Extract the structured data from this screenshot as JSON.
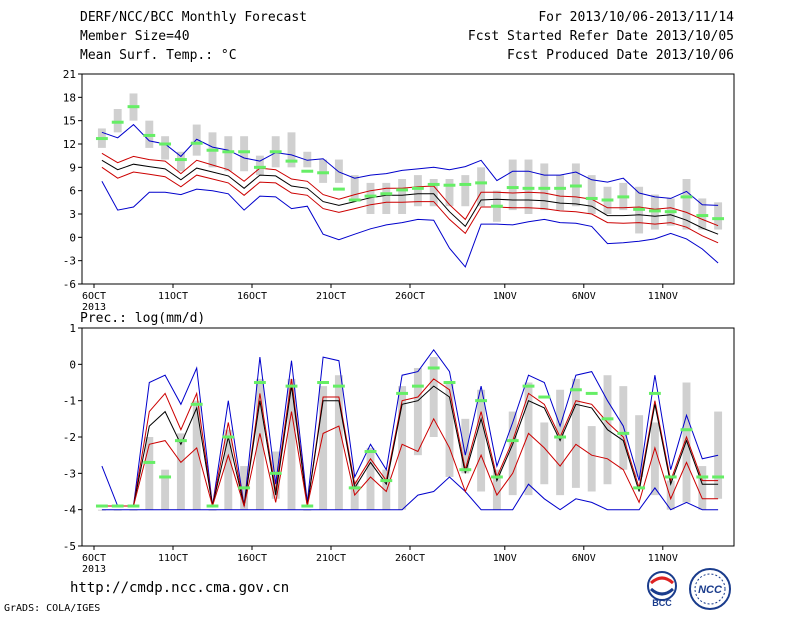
{
  "header": {
    "title": "DERF/NCC/BCC Monthly Forecast",
    "member_size": "Member Size=40",
    "variable": "Mean Surf. Temp.: °C",
    "period": "For 2013/10/06-2013/11/14",
    "fcst_started": "Fcst Started Refer Date 2013/10/05",
    "fcst_produced": "Fcst Produced Date 2013/10/06"
  },
  "footer": {
    "url": "http://cmdp.ncc.cma.gov.cn",
    "credit": "GrADS: COLA/IGES",
    "logo_left_text": "BCC",
    "logo_right_text": "NCC"
  },
  "colors": {
    "box": "#d0d0d0",
    "median": "#66ee66",
    "envelope": "#0000cc",
    "spread": "#cc0000",
    "mean": "#000000"
  },
  "chart_data": [
    {
      "type": "line",
      "title": "",
      "ylabel": "Mean Surf. Temp.: °C",
      "ylim": [
        -6,
        21
      ],
      "yticks": [
        -6,
        -3,
        0,
        3,
        6,
        9,
        12,
        15,
        18,
        21
      ],
      "xticks": [
        {
          "day": 0,
          "label": "6OCT",
          "year": "2013"
        },
        {
          "day": 5,
          "label": "11OCT"
        },
        {
          "day": 10,
          "label": "16OCT"
        },
        {
          "day": 15,
          "label": "21OCT"
        },
        {
          "day": 20,
          "label": "26OCT"
        },
        {
          "day": 26,
          "label": "1NOV"
        },
        {
          "day": 31,
          "label": "6NOV"
        },
        {
          "day": 36,
          "label": "11NOV"
        }
      ],
      "days": 40,
      "boxes": [
        [
          11.5,
          14
        ],
        [
          13.5,
          16.5
        ],
        [
          15,
          18.5
        ],
        [
          11.5,
          15
        ],
        [
          10,
          13
        ],
        [
          8.5,
          11
        ],
        [
          10.5,
          14.5
        ],
        [
          9,
          13.5
        ],
        [
          8.5,
          13
        ],
        [
          8.5,
          13
        ],
        [
          8,
          10.5
        ],
        [
          9,
          13
        ],
        [
          9,
          13.5
        ],
        [
          9,
          11
        ],
        [
          7,
          10
        ],
        [
          7,
          10
        ],
        [
          5,
          8
        ],
        [
          3,
          7
        ],
        [
          3,
          7
        ],
        [
          3,
          7.5
        ],
        [
          4,
          8
        ],
        [
          4,
          7.5
        ],
        [
          4,
          7.5
        ],
        [
          4,
          8
        ],
        [
          4,
          9
        ],
        [
          2,
          6
        ],
        [
          3.5,
          10
        ],
        [
          3,
          10
        ],
        [
          3.5,
          9.5
        ],
        [
          3.5,
          8
        ],
        [
          4,
          9.5
        ],
        [
          3,
          8
        ],
        [
          3,
          6.5
        ],
        [
          3.5,
          7
        ],
        [
          0.5,
          6.5
        ],
        [
          1,
          5.5
        ],
        [
          1.5,
          5
        ],
        [
          1,
          7.5
        ],
        [
          1,
          5
        ],
        [
          1,
          4.5
        ]
      ],
      "series": [
        {
          "name": "",
          "role": "median",
          "values": [
            12.7,
            14.8,
            16.8,
            13.1,
            12,
            10,
            12.1,
            11.2,
            11,
            11,
            9,
            11,
            9.8,
            8.5,
            8.3,
            6.2,
            4.8,
            5.3,
            5.6,
            6.1,
            6.3,
            6.8,
            6.7,
            6.8,
            7,
            4,
            6.4,
            6.3,
            6.3,
            6.3,
            6.6,
            5,
            4.8,
            5.2,
            3.6,
            3.4,
            3.3,
            5.2,
            2.8,
            2.4
          ]
        },
        {
          "name": "",
          "role": "upper envelope",
          "values": [
            13.5,
            12.8,
            14.5,
            12.4,
            12,
            10.4,
            12.6,
            11.6,
            11.2,
            10.2,
            9.8,
            10.9,
            10.6,
            9.9,
            10.1,
            8.4,
            7.6,
            8,
            8.2,
            8.6,
            8.8,
            9,
            8.7,
            9.1,
            9.9,
            7.3,
            8.5,
            8.5,
            8,
            8,
            8.4,
            7.4,
            7.1,
            7.6,
            5.7,
            5.2,
            5,
            5.9,
            4.2,
            4.1
          ]
        },
        {
          "name": "",
          "role": "lower envelope",
          "values": [
            7.2,
            3.5,
            3.9,
            5.8,
            5.8,
            5.5,
            6.2,
            6,
            5.6,
            3.5,
            5.3,
            5.2,
            3.7,
            4,
            0.4,
            -0.3,
            0.4,
            1.1,
            1.6,
            1.9,
            2.3,
            2.2,
            -1.4,
            -3.8,
            1.7,
            1.7,
            1.6,
            2,
            2.3,
            1.9,
            1.8,
            1.4,
            -0.8,
            -0.7,
            -0.5,
            -0.2,
            0.5,
            -0.2,
            -1.5,
            -3.3
          ]
        },
        {
          "name": "",
          "role": "upper spread",
          "values": [
            10.8,
            9.6,
            10.4,
            10,
            9.8,
            8.2,
            9.9,
            9.3,
            8.7,
            7.2,
            8.9,
            8.7,
            7.5,
            7.2,
            5.5,
            4.9,
            5.5,
            6,
            6.3,
            6.3,
            6.5,
            6.6,
            4.2,
            2.3,
            5.8,
            5.8,
            5.7,
            5.8,
            5.7,
            5.3,
            5.2,
            4.9,
            3.8,
            3.8,
            3.9,
            3.6,
            3.8,
            3.2,
            2.3,
            1.5
          ]
        },
        {
          "name": "",
          "role": "mean",
          "values": [
            9.9,
            8.7,
            9.4,
            9.1,
            8.8,
            7.4,
            8.9,
            8.4,
            7.9,
            6.3,
            8,
            7.9,
            6.6,
            6.3,
            4.6,
            4.1,
            4.6,
            5.1,
            5.4,
            5.4,
            5.6,
            5.6,
            3.3,
            1.4,
            4.8,
            4.9,
            4.8,
            4.8,
            4.7,
            4.4,
            4.3,
            4,
            2.8,
            2.8,
            2.9,
            2.7,
            2.9,
            2.2,
            1.2,
            0.4
          ]
        },
        {
          "name": "",
          "role": "lower spread",
          "values": [
            9,
            7.6,
            8.4,
            8.1,
            7.8,
            6.5,
            8,
            7.5,
            7,
            5.4,
            7.1,
            7,
            5.7,
            5.4,
            3.7,
            3.2,
            3.7,
            4.2,
            4.5,
            4.5,
            4.6,
            4.6,
            2.3,
            0.5,
            3.9,
            3.9,
            3.8,
            3.8,
            3.7,
            3.4,
            3.3,
            3,
            1.9,
            1.8,
            1.9,
            1.7,
            1.9,
            1.3,
            0.2,
            -0.7
          ]
        }
      ]
    },
    {
      "type": "line",
      "title": "",
      "ylabel": "Prec.: log(mm/d)",
      "ylim": [
        -5,
        1
      ],
      "yticks": [
        -5,
        -4,
        -3,
        -2,
        -1,
        0,
        1
      ],
      "xticks": [
        {
          "day": 0,
          "label": "6OCT",
          "year": "2013"
        },
        {
          "day": 5,
          "label": "11OCT"
        },
        {
          "day": 10,
          "label": "16OCT"
        },
        {
          "day": 15,
          "label": "21OCT"
        },
        {
          "day": 20,
          "label": "26OCT"
        },
        {
          "day": 26,
          "label": "1NOV"
        },
        {
          "day": 31,
          "label": "6NOV"
        },
        {
          "day": 36,
          "label": "11NOV"
        }
      ],
      "days": 40,
      "boxes": [
        [
          -4,
          -4
        ],
        [
          -4,
          -4
        ],
        [
          -4,
          -4
        ],
        [
          -4,
          -2
        ],
        [
          -4,
          -2.9
        ],
        [
          -4,
          -1.9
        ],
        [
          -4,
          -1
        ],
        [
          -4,
          -4
        ],
        [
          -4,
          -1.8
        ],
        [
          -4,
          -2.8
        ],
        [
          -4,
          -0.4
        ],
        [
          -3.7,
          -2.4
        ],
        [
          -4,
          -0.4
        ],
        [
          -4,
          -4
        ],
        [
          -4,
          -0.6
        ],
        [
          -4,
          -0.3
        ],
        [
          -4,
          -3.2
        ],
        [
          -4,
          -2.3
        ],
        [
          -4,
          -2.9
        ],
        [
          -4,
          -0.6
        ],
        [
          -2.5,
          -0.1
        ],
        [
          -2,
          0.2
        ],
        [
          -3.1,
          -0.5
        ],
        [
          -3,
          -1.5
        ],
        [
          -3.5,
          -0.7
        ],
        [
          -4,
          -2.9
        ],
        [
          -3.6,
          -1.3
        ],
        [
          -3.6,
          -0.5
        ],
        [
          -3.3,
          -1.6
        ],
        [
          -3.6,
          -0.7
        ],
        [
          -3.4,
          -0.4
        ],
        [
          -3.5,
          -1.7
        ],
        [
          -3.3,
          -0.3
        ],
        [
          -2.9,
          -0.6
        ],
        [
          -3.1,
          -1.4
        ],
        [
          -3.6,
          -1.6
        ],
        [
          -4,
          -3.2
        ],
        [
          -3.8,
          -0.5
        ],
        [
          -4,
          -2.8
        ],
        [
          -3.7,
          -1.3
        ]
      ],
      "series": [
        {
          "name": "",
          "role": "median",
          "values": [
            -3.9,
            -3.9,
            -3.9,
            -2.7,
            -3.1,
            -2.1,
            -1.1,
            -3.9,
            -2,
            -3.4,
            -0.5,
            -3,
            -0.6,
            -3.9,
            -0.5,
            -0.6,
            -3.4,
            -2.4,
            -3.2,
            -0.8,
            -0.6,
            -0.1,
            -0.5,
            -2.9,
            -1,
            -3.1,
            -2.1,
            -0.6,
            -0.9,
            -2,
            -0.7,
            -0.8,
            -1.5,
            -1.9,
            -3.4,
            -0.8,
            -3.1,
            -1.8,
            -3.1,
            -3.1
          ]
        },
        {
          "name": "",
          "role": "upper envelope",
          "values": [
            -2.8,
            -3.9,
            -3.9,
            -0.5,
            -0.3,
            -1.1,
            -0.1,
            -3.9,
            -1,
            -3.9,
            0.2,
            -3.3,
            0.1,
            -3.8,
            0.2,
            0.1,
            -3.1,
            -2.2,
            -2.9,
            -0.3,
            -0.2,
            0.4,
            -0.2,
            -2.5,
            -0.6,
            -2.8,
            -1.6,
            -0.3,
            -0.5,
            -1.7,
            -0.3,
            -0.2,
            -1,
            -1.7,
            -3.2,
            -0.3,
            -2.9,
            -1.4,
            -2.6,
            -2.5
          ]
        },
        {
          "name": "",
          "role": "lower envelope",
          "values": [
            -4,
            -4,
            -4,
            -4,
            -4,
            -4,
            -4,
            -4,
            -4,
            -4,
            -4,
            -4,
            -4,
            -4,
            -4,
            -4,
            -4,
            -4,
            -4,
            -4,
            -3.6,
            -3.5,
            -3.1,
            -3.5,
            -4,
            -4,
            -4,
            -3.3,
            -3.7,
            -4,
            -3.7,
            -3.8,
            -4,
            -4,
            -4,
            -3.4,
            -4,
            -3.8,
            -4,
            -4
          ]
        },
        {
          "name": "",
          "role": "upper spread",
          "values": [
            -3.9,
            -3.9,
            -3.9,
            -1.3,
            -0.8,
            -1.8,
            -0.8,
            -3.9,
            -1.6,
            -3.9,
            -0.8,
            -3.5,
            -0.4,
            -3.9,
            -0.9,
            -0.9,
            -3.3,
            -2.6,
            -3.2,
            -1,
            -0.9,
            -0.4,
            -0.7,
            -2.9,
            -1.3,
            -3.1,
            -2.1,
            -0.8,
            -1.1,
            -2,
            -1,
            -1.1,
            -1.6,
            -2,
            -3.4,
            -1,
            -3.2,
            -2,
            -3.2,
            -3.2
          ]
        },
        {
          "name": "",
          "role": "mean",
          "values": [
            -3.9,
            -3.9,
            -3.9,
            -1.7,
            -1.3,
            -2.2,
            -1.2,
            -3.9,
            -2,
            -3.9,
            -1,
            -3.6,
            -0.6,
            -3.9,
            -1,
            -1,
            -3.4,
            -2.7,
            -3.3,
            -1.1,
            -1,
            -0.6,
            -0.9,
            -3,
            -1.5,
            -3.2,
            -2.2,
            -1,
            -1.2,
            -2.1,
            -1.1,
            -1.2,
            -1.8,
            -2.1,
            -3.5,
            -1.1,
            -3.3,
            -2.1,
            -3.3,
            -3.3
          ]
        },
        {
          "name": "",
          "role": "lower spread",
          "values": [
            -3.9,
            -3.9,
            -3.9,
            -2.2,
            -2.1,
            -2.7,
            -2.3,
            -3.9,
            -2.5,
            -3.9,
            -1.9,
            -3.8,
            -1.3,
            -3.9,
            -1.9,
            -1.7,
            -3.6,
            -3.1,
            -3.5,
            -2.2,
            -2.4,
            -1.5,
            -2.3,
            -3.5,
            -2.5,
            -3.6,
            -3,
            -1.9,
            -2.3,
            -2.8,
            -2.2,
            -2.5,
            -2.6,
            -2.9,
            -3.8,
            -2.3,
            -3.7,
            -2.7,
            -3.7,
            -3.7
          ]
        }
      ]
    }
  ]
}
